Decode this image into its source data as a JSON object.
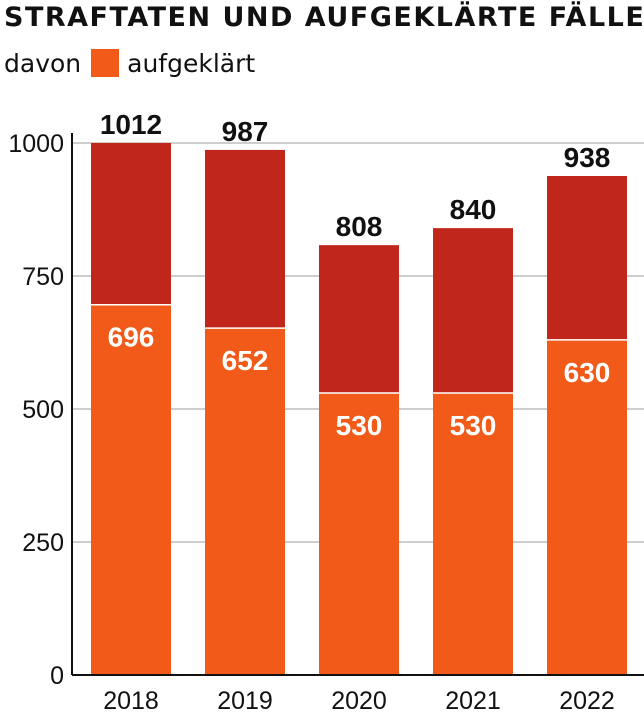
{
  "title": "STRAFTATEN UND AUFGEKLÄRTE FÄLLE",
  "legend": {
    "prefix": "davon",
    "entry": "aufgeklärt"
  },
  "colors": {
    "total": "#c1261b",
    "solved": "#f15a18",
    "grid": "#bdbdbd",
    "axis": "#111111"
  },
  "chart_data": {
    "type": "bar",
    "stacked": true,
    "title": "STRAFTATEN UND AUFGEKLÄRTE FÄLLE",
    "categories": [
      "2018",
      "2019",
      "2020",
      "2021",
      "2022"
    ],
    "series": [
      {
        "name": "aufgeklärt",
        "values": [
          696,
          652,
          530,
          530,
          630
        ]
      }
    ],
    "totals": [
      1012,
      987,
      808,
      840,
      938
    ],
    "ylim": [
      0,
      1000
    ],
    "yticks": [
      0,
      250,
      500,
      750,
      1000
    ],
    "xlabel": "",
    "ylabel": "",
    "grid": true,
    "legend_position": "top-left"
  }
}
